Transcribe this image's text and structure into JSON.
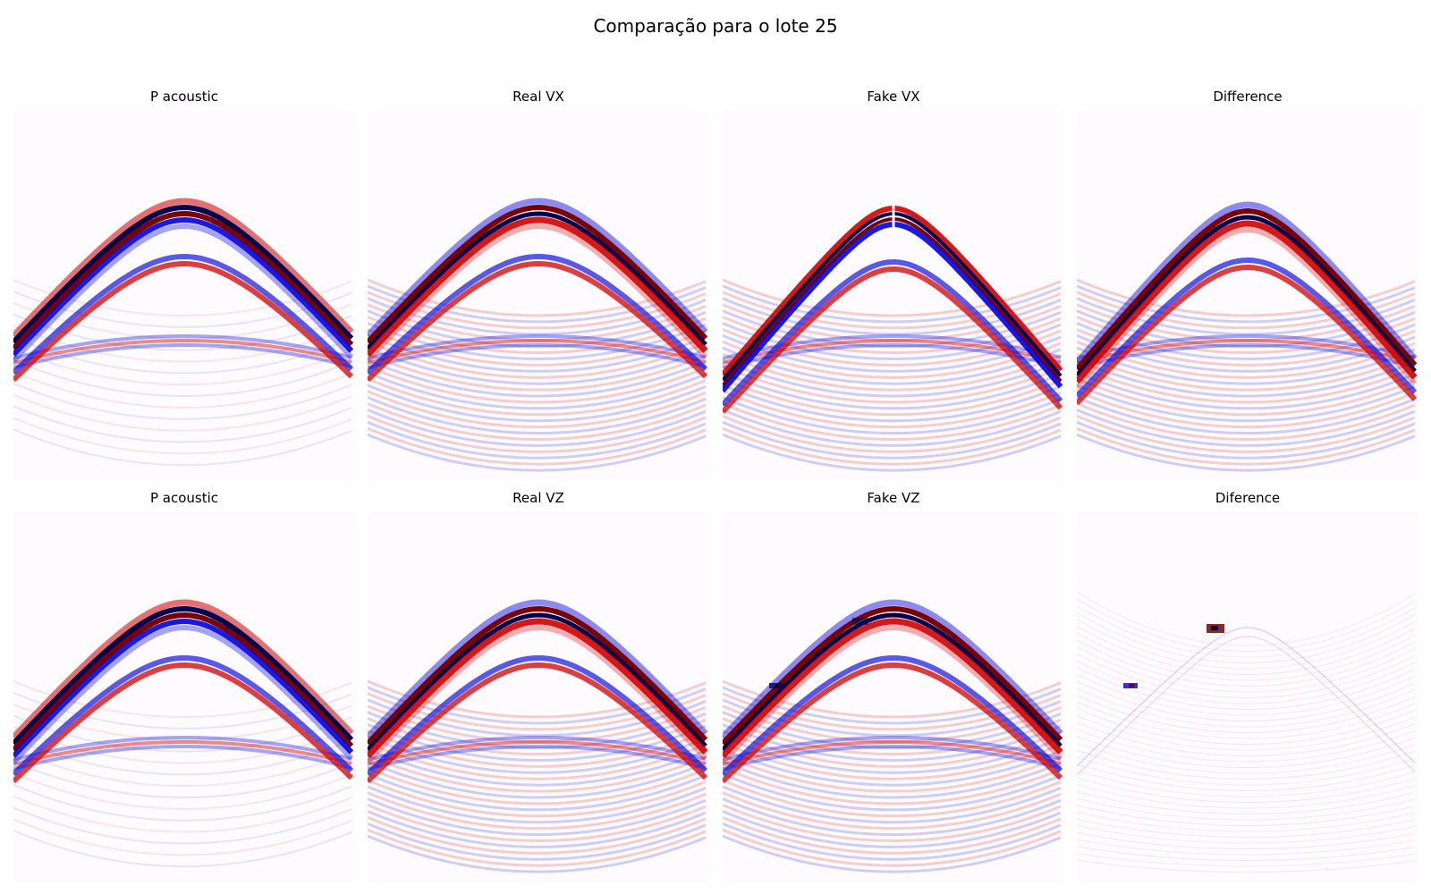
{
  "figure": {
    "title": "Comparação para o lote 25"
  },
  "colors": {
    "positive": "#d00000",
    "positive_dark": "#7a0000",
    "negative": "#0000e0",
    "negative_dark": "#000050",
    "background": "#fdfbfd"
  },
  "chart_data": [
    {
      "type": "heatmap",
      "title": "P acoustic",
      "colormap": "seismic",
      "axes": "off",
      "content": "seismic shot gather: direct-arrival hyperbola with flatter reflections below"
    },
    {
      "type": "heatmap",
      "title": "Real VX",
      "colormap": "seismic",
      "axes": "off",
      "content": "seismic shot gather, horizontal particle velocity"
    },
    {
      "type": "heatmap",
      "title": "Fake VX",
      "colormap": "seismic",
      "axes": "off",
      "content": "generated seismic gather, horizontal particle velocity, polarity flip at apex"
    },
    {
      "type": "heatmap",
      "title": "Difference",
      "colormap": "seismic",
      "axes": "off",
      "content": "difference between real and fake VX"
    },
    {
      "type": "heatmap",
      "title": "P acoustic",
      "colormap": "seismic",
      "axes": "off",
      "content": "seismic shot gather: direct-arrival hyperbola with flatter reflections below"
    },
    {
      "type": "heatmap",
      "title": "Real VZ",
      "colormap": "seismic",
      "axes": "off",
      "content": "seismic shot gather, vertical particle velocity"
    },
    {
      "type": "heatmap",
      "title": "Fake VZ",
      "colormap": "seismic",
      "axes": "off",
      "content": "generated seismic gather, vertical particle velocity with small artifacts"
    },
    {
      "type": "heatmap",
      "title": "Diference",
      "colormap": "seismic",
      "axes": "off",
      "content": "difference between real and fake VZ, mostly near zero with two small artifacts"
    }
  ]
}
